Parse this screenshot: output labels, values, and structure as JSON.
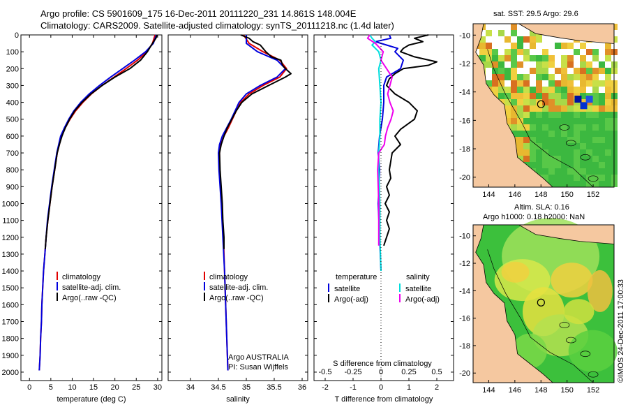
{
  "header": {
    "title_line1": "Argo profile: CS 5901609_175 16-Dec-2011 20111220_231 14.861S 148.004E",
    "title_line2": "Climatology: CARS2009. Satellite-adjusted climatology: synTS_20111218.nc (1.4d later)"
  },
  "colors": {
    "climatology": "#e00000",
    "satellite": "#0000dd",
    "argo": "#000000",
    "sal_satellite": "#00dddd",
    "sal_argo": "#ee00ee",
    "land": "#f5c8a0"
  },
  "chart_data": [
    {
      "type": "line",
      "id": "temperature",
      "xlabel": "temperature (deg C)",
      "ylabel": "",
      "xlim": [
        -2,
        31
      ],
      "ylim": [
        2050,
        0
      ],
      "xticks": [
        "0",
        "5",
        "10",
        "15",
        "20",
        "25",
        "30"
      ],
      "xtick_values": [
        0,
        5,
        10,
        15,
        20,
        25,
        30
      ],
      "ytick_values": [
        0,
        100,
        200,
        300,
        400,
        500,
        600,
        700,
        800,
        900,
        1000,
        1100,
        1200,
        1300,
        1400,
        1500,
        1600,
        1700,
        1800,
        1900,
        2000
      ],
      "legend": [
        "climatology",
        "satellite-adj. clim.",
        "Argo(..raw -QC)"
      ],
      "series": [
        {
          "name": "climatology",
          "depth": [
            0,
            50,
            100,
            150,
            200,
            250,
            300,
            350,
            400,
            450,
            500,
            550,
            600,
            700,
            800,
            900,
            1000,
            1100,
            1200,
            1300,
            1400,
            1500,
            1600,
            1700,
            1800,
            1900,
            1990
          ],
          "values": [
            29.4,
            28.8,
            27.5,
            25.3,
            22.6,
            19.8,
            17.0,
            14.5,
            12.5,
            10.8,
            9.5,
            8.4,
            7.5,
            6.5,
            5.9,
            5.3,
            4.8,
            4.3,
            3.9,
            3.6,
            3.3,
            3.1,
            2.9,
            2.8,
            2.6,
            2.5,
            2.3
          ]
        },
        {
          "name": "satellite-adj. clim.",
          "depth": [
            0,
            50,
            100,
            150,
            200,
            250,
            300,
            350,
            400,
            450,
            500,
            550,
            600,
            700,
            800,
            900,
            1000,
            1100,
            1200,
            1300,
            1400,
            1500,
            1600,
            1700,
            1800,
            1900,
            1990
          ],
          "values": [
            29.7,
            29.0,
            27.2,
            24.6,
            21.8,
            19.0,
            16.4,
            14.0,
            12.0,
            10.4,
            9.2,
            8.2,
            7.3,
            6.4,
            5.8,
            5.2,
            4.7,
            4.2,
            3.9,
            3.6,
            3.3,
            3.1,
            2.9,
            2.8,
            2.6,
            2.5,
            2.3
          ]
        },
        {
          "name": "Argo(..raw -QC)",
          "depth": [
            0,
            20,
            50,
            100,
            150,
            200,
            250,
            300,
            350,
            400,
            450,
            500,
            550,
            600,
            650,
            700,
            800,
            900,
            1000,
            1100,
            1200,
            1270
          ],
          "values": [
            29.9,
            29.6,
            28.8,
            27.6,
            26.0,
            23.5,
            20.0,
            17.0,
            14.4,
            12.3,
            10.6,
            9.4,
            8.4,
            7.6,
            7.0,
            6.5,
            5.9,
            5.3,
            4.8,
            4.3,
            3.9,
            3.7
          ]
        }
      ]
    },
    {
      "type": "line",
      "id": "salinity",
      "xlabel": "salinity",
      "xlim": [
        33.6,
        36.1
      ],
      "ylim": [
        2050,
        0
      ],
      "xticks": [
        "34",
        "34.5",
        "35",
        "35.5",
        "36"
      ],
      "xtick_values": [
        34,
        34.5,
        35,
        35.5,
        36
      ],
      "legend": [
        "climatology",
        "satellite-adj. clim.",
        "Argo(..raw -QC)"
      ],
      "annotation": [
        "Argo AUSTRALIA",
        "PI: Susan Wijffels"
      ],
      "series": [
        {
          "name": "climatology",
          "depth": [
            0,
            50,
            100,
            150,
            200,
            250,
            300,
            350,
            400,
            450,
            500,
            550,
            600,
            650,
            700,
            800,
            900,
            1000,
            1200,
            1400,
            1600,
            1800,
            1990
          ],
          "values": [
            34.95,
            35.05,
            35.3,
            35.6,
            35.72,
            35.6,
            35.3,
            35.05,
            34.9,
            34.82,
            34.75,
            34.68,
            34.6,
            34.54,
            34.52,
            34.52,
            34.54,
            34.56,
            34.59,
            34.61,
            34.63,
            34.65,
            34.67
          ]
        },
        {
          "name": "satellite-adj. clim.",
          "depth": [
            0,
            50,
            100,
            150,
            200,
            250,
            300,
            350,
            400,
            450,
            500,
            550,
            600,
            650,
            700,
            800,
            900,
            1000,
            1200,
            1400,
            1600,
            1800,
            1990
          ],
          "values": [
            35.0,
            35.0,
            35.2,
            35.55,
            35.7,
            35.55,
            35.25,
            35.0,
            34.87,
            34.8,
            34.73,
            34.65,
            34.57,
            34.52,
            34.5,
            34.51,
            34.53,
            34.55,
            34.58,
            34.61,
            34.63,
            34.65,
            34.67
          ]
        },
        {
          "name": "Argo(..raw -QC)",
          "depth": [
            0,
            20,
            40,
            60,
            80,
            100,
            130,
            150,
            180,
            200,
            230,
            250,
            300,
            350,
            400,
            450,
            500,
            550,
            600,
            650,
            700,
            800,
            900,
            1000,
            1100,
            1200,
            1270
          ],
          "values": [
            34.9,
            35.05,
            35.12,
            35.25,
            35.3,
            35.35,
            35.45,
            35.62,
            35.65,
            35.7,
            35.8,
            35.7,
            35.4,
            35.1,
            34.92,
            34.82,
            34.74,
            34.66,
            34.6,
            34.55,
            34.52,
            34.53,
            34.55,
            34.57,
            34.58,
            34.6,
            34.6
          ]
        }
      ]
    },
    {
      "type": "line",
      "id": "difference",
      "xlabel": "T difference from climatology",
      "xlabel_top": "S difference from climatology",
      "xlim": [
        -2.4,
        2.6
      ],
      "ylim": [
        2050,
        0
      ],
      "xticks": [
        "-2",
        "-1",
        "0",
        "1",
        "2"
      ],
      "xtick_values": [
        -2,
        -1,
        0,
        1,
        2
      ],
      "xticks_top": [
        "-0.5",
        "-0.25",
        "0",
        "0.25",
        "0.5"
      ],
      "xtick_top_values": [
        -0.5,
        -0.25,
        0,
        0.25,
        0.5
      ],
      "legend_temperature": [
        "temperature",
        "satellite",
        "Argo(-adj)"
      ],
      "legend_salinity": [
        "salinity",
        "satellite",
        "Argo(-adj)"
      ],
      "series": [
        {
          "name": "T satellite",
          "depth": [
            0,
            20,
            40,
            60,
            80,
            100,
            150,
            200,
            250,
            300,
            400,
            500,
            600,
            700,
            800,
            1000,
            1200,
            1400
          ],
          "values": [
            0.3,
            0.35,
            -0.2,
            0.2,
            0.6,
            0.5,
            0.8,
            0.7,
            0.2,
            0.1,
            0.1,
            0.05,
            -0.05,
            -0.1,
            -0.05,
            -0.1,
            -0.05,
            0.0
          ]
        },
        {
          "name": "T Argo(-adj)",
          "depth": [
            0,
            20,
            40,
            60,
            80,
            100,
            130,
            160,
            180,
            200,
            230,
            260,
            300,
            350,
            400,
            450,
            500,
            560,
            600,
            650,
            700,
            800,
            850,
            900,
            950,
            1000,
            1050,
            1100,
            1150,
            1200,
            1250
          ],
          "values": [
            1.7,
            1.2,
            1.5,
            1.0,
            0.8,
            0.7,
            1.2,
            2.0,
            1.7,
            0.8,
            0.5,
            0.3,
            0.2,
            0.5,
            1.0,
            1.3,
            1.2,
            0.7,
            0.5,
            0.7,
            0.4,
            0.3,
            0.35,
            0.2,
            0.3,
            0.15,
            0.3,
            0.2,
            0.3,
            0.2,
            0.1
          ]
        },
        {
          "name": "S satellite",
          "depth": [
            0,
            20,
            40,
            60,
            80,
            100,
            150,
            200,
            300,
            400,
            500,
            600,
            700,
            800,
            1000,
            1200,
            1400
          ],
          "values": [
            -0.1,
            -0.08,
            -0.05,
            -0.08,
            -0.05,
            -0.02,
            0.0,
            -0.02,
            -0.01,
            0.0,
            -0.01,
            -0.01,
            -0.02,
            -0.02,
            -0.01,
            -0.01,
            0.0
          ]
        },
        {
          "name": "S Argo(-adj)",
          "depth": [
            0,
            20,
            50,
            100,
            150,
            200,
            250,
            300,
            350,
            400,
            450,
            500,
            550,
            600,
            650,
            700,
            800,
            1000,
            1200,
            1250
          ],
          "values": [
            -0.1,
            -0.12,
            -0.05,
            0.02,
            0.0,
            0.05,
            0.1,
            0.08,
            0.06,
            0.08,
            0.11,
            0.09,
            0.06,
            0.04,
            0.03,
            -0.02,
            -0.03,
            -0.02,
            -0.02,
            -0.02
          ]
        }
      ]
    },
    {
      "type": "heatmap",
      "id": "sst_map",
      "title": "sat. SST: 29.5 Argo: 29.6",
      "xticks": [
        "144",
        "146",
        "148",
        "150",
        "152"
      ],
      "xtick_values": [
        144,
        146,
        148,
        150,
        152
      ],
      "yticks": [
        "-10",
        "-12",
        "-14",
        "-16",
        "-18",
        "-20"
      ],
      "ytick_values": [
        -10,
        -12,
        -14,
        -16,
        -18,
        -20
      ],
      "xlim": [
        142.8,
        153.6
      ],
      "ylim": [
        -9.2,
        -20.7
      ],
      "float_position": [
        148.004,
        -14.861
      ]
    },
    {
      "type": "heatmap",
      "id": "sla_map",
      "title_line1": "Altim. SLA: 0.16",
      "title_line2": "Argo h1000: 0.18 h2000: NaN",
      "xticks": [
        "144",
        "146",
        "148",
        "150",
        "152"
      ],
      "xtick_values": [
        144,
        146,
        148,
        150,
        152
      ],
      "yticks": [
        "-10",
        "-12",
        "-14",
        "-16",
        "-18",
        "-20"
      ],
      "ytick_values": [
        -10,
        -12,
        -14,
        -16,
        -18,
        -20
      ],
      "xlim": [
        142.8,
        153.6
      ],
      "ylim": [
        -9.2,
        -20.7
      ],
      "float_position": [
        148.004,
        -14.861
      ]
    }
  ],
  "footer": {
    "credit": "©IMOS 24-Dec-2011 17:00:33"
  }
}
